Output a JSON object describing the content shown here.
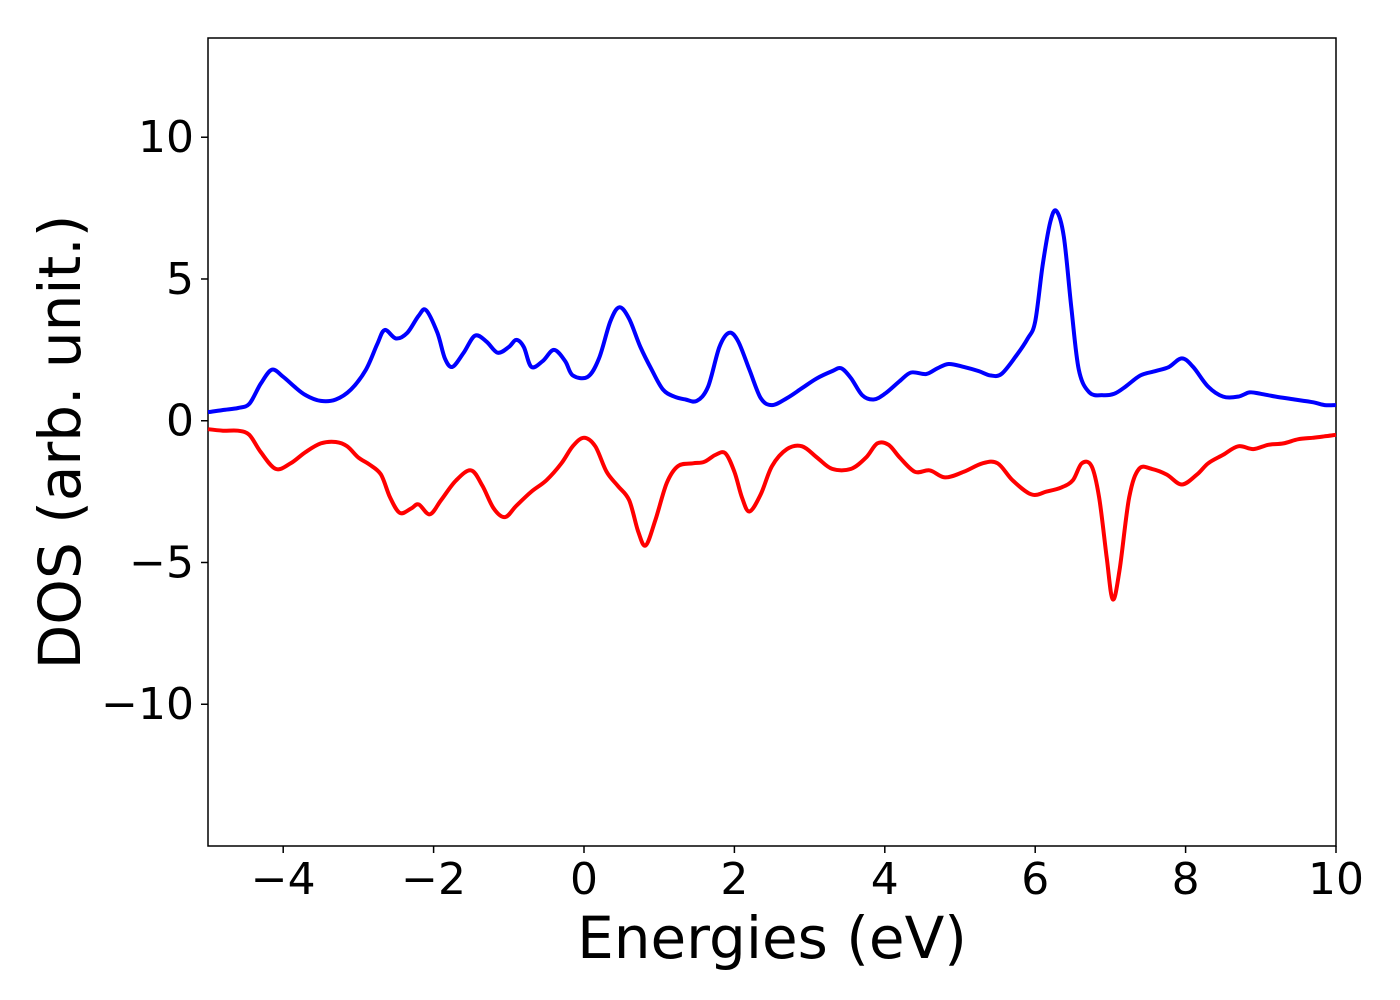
{
  "chart_data": {
    "type": "line",
    "title": "",
    "xlabel": "Energies (eV)",
    "ylabel": "DOS (arb. unit.)",
    "xlim": [
      -5,
      10
    ],
    "ylim": [
      -15,
      13.5
    ],
    "xticks": [
      -4,
      -2,
      0,
      2,
      4,
      6,
      8,
      10
    ],
    "xtick_labels": [
      "−4",
      "−2",
      "0",
      "2",
      "4",
      "6",
      "8",
      "10"
    ],
    "yticks": [
      -10,
      -5,
      0,
      5,
      10
    ],
    "ytick_labels": [
      "−10",
      "−5",
      "0",
      "5",
      "10"
    ],
    "grid": false,
    "series": [
      {
        "color": "#0000ff",
        "points": [
          [
            -5.0,
            0.3
          ],
          [
            -4.8,
            0.38
          ],
          [
            -4.6,
            0.45
          ],
          [
            -4.45,
            0.6
          ],
          [
            -4.3,
            1.3
          ],
          [
            -4.15,
            1.8
          ],
          [
            -4.0,
            1.55
          ],
          [
            -3.85,
            1.2
          ],
          [
            -3.7,
            0.9
          ],
          [
            -3.5,
            0.7
          ],
          [
            -3.3,
            0.75
          ],
          [
            -3.1,
            1.1
          ],
          [
            -2.9,
            1.8
          ],
          [
            -2.75,
            2.7
          ],
          [
            -2.65,
            3.2
          ],
          [
            -2.5,
            2.9
          ],
          [
            -2.35,
            3.1
          ],
          [
            -2.2,
            3.7
          ],
          [
            -2.1,
            3.9
          ],
          [
            -1.95,
            3.1
          ],
          [
            -1.85,
            2.2
          ],
          [
            -1.75,
            1.9
          ],
          [
            -1.6,
            2.4
          ],
          [
            -1.45,
            3.0
          ],
          [
            -1.3,
            2.8
          ],
          [
            -1.15,
            2.4
          ],
          [
            -1.0,
            2.6
          ],
          [
            -0.9,
            2.85
          ],
          [
            -0.8,
            2.6
          ],
          [
            -0.7,
            1.9
          ],
          [
            -0.55,
            2.1
          ],
          [
            -0.4,
            2.5
          ],
          [
            -0.25,
            2.1
          ],
          [
            -0.15,
            1.6
          ],
          [
            0.05,
            1.55
          ],
          [
            0.2,
            2.2
          ],
          [
            0.35,
            3.5
          ],
          [
            0.47,
            4.0
          ],
          [
            0.6,
            3.6
          ],
          [
            0.75,
            2.6
          ],
          [
            0.9,
            1.8
          ],
          [
            1.05,
            1.1
          ],
          [
            1.2,
            0.85
          ],
          [
            1.35,
            0.75
          ],
          [
            1.5,
            0.7
          ],
          [
            1.65,
            1.2
          ],
          [
            1.8,
            2.6
          ],
          [
            1.93,
            3.1
          ],
          [
            2.05,
            2.8
          ],
          [
            2.2,
            1.8
          ],
          [
            2.35,
            0.8
          ],
          [
            2.5,
            0.55
          ],
          [
            2.7,
            0.8
          ],
          [
            2.9,
            1.15
          ],
          [
            3.1,
            1.5
          ],
          [
            3.3,
            1.75
          ],
          [
            3.42,
            1.85
          ],
          [
            3.55,
            1.5
          ],
          [
            3.7,
            0.9
          ],
          [
            3.85,
            0.75
          ],
          [
            4.0,
            0.95
          ],
          [
            4.2,
            1.4
          ],
          [
            4.35,
            1.7
          ],
          [
            4.55,
            1.65
          ],
          [
            4.7,
            1.85
          ],
          [
            4.85,
            2.0
          ],
          [
            5.05,
            1.9
          ],
          [
            5.25,
            1.75
          ],
          [
            5.4,
            1.6
          ],
          [
            5.55,
            1.65
          ],
          [
            5.75,
            2.3
          ],
          [
            5.9,
            2.9
          ],
          [
            6.0,
            3.5
          ],
          [
            6.1,
            5.5
          ],
          [
            6.2,
            7.0
          ],
          [
            6.28,
            7.4
          ],
          [
            6.38,
            6.5
          ],
          [
            6.48,
            4.0
          ],
          [
            6.58,
            1.8
          ],
          [
            6.72,
            1.0
          ],
          [
            6.9,
            0.9
          ],
          [
            7.05,
            0.95
          ],
          [
            7.2,
            1.2
          ],
          [
            7.4,
            1.6
          ],
          [
            7.6,
            1.75
          ],
          [
            7.78,
            1.9
          ],
          [
            7.95,
            2.2
          ],
          [
            8.1,
            1.9
          ],
          [
            8.3,
            1.2
          ],
          [
            8.5,
            0.85
          ],
          [
            8.7,
            0.85
          ],
          [
            8.85,
            1.0
          ],
          [
            9.0,
            0.95
          ],
          [
            9.2,
            0.85
          ],
          [
            9.45,
            0.75
          ],
          [
            9.7,
            0.65
          ],
          [
            9.85,
            0.55
          ],
          [
            10.0,
            0.55
          ]
        ]
      },
      {
        "color": "#ff0000",
        "points": [
          [
            -5.0,
            -0.3
          ],
          [
            -4.8,
            -0.35
          ],
          [
            -4.6,
            -0.35
          ],
          [
            -4.45,
            -0.5
          ],
          [
            -4.3,
            -1.1
          ],
          [
            -4.1,
            -1.7
          ],
          [
            -3.9,
            -1.5
          ],
          [
            -3.7,
            -1.1
          ],
          [
            -3.5,
            -0.8
          ],
          [
            -3.3,
            -0.75
          ],
          [
            -3.15,
            -0.9
          ],
          [
            -3.0,
            -1.3
          ],
          [
            -2.85,
            -1.55
          ],
          [
            -2.7,
            -1.9
          ],
          [
            -2.58,
            -2.7
          ],
          [
            -2.45,
            -3.25
          ],
          [
            -2.3,
            -3.1
          ],
          [
            -2.2,
            -2.95
          ],
          [
            -2.05,
            -3.3
          ],
          [
            -1.9,
            -2.8
          ],
          [
            -1.7,
            -2.1
          ],
          [
            -1.5,
            -1.75
          ],
          [
            -1.35,
            -2.3
          ],
          [
            -1.2,
            -3.1
          ],
          [
            -1.05,
            -3.4
          ],
          [
            -0.9,
            -3.0
          ],
          [
            -0.7,
            -2.5
          ],
          [
            -0.5,
            -2.1
          ],
          [
            -0.3,
            -1.5
          ],
          [
            -0.15,
            -0.9
          ],
          [
            0.0,
            -0.6
          ],
          [
            0.15,
            -0.9
          ],
          [
            0.3,
            -1.8
          ],
          [
            0.45,
            -2.3
          ],
          [
            0.6,
            -2.8
          ],
          [
            0.72,
            -3.9
          ],
          [
            0.82,
            -4.4
          ],
          [
            0.95,
            -3.5
          ],
          [
            1.1,
            -2.2
          ],
          [
            1.25,
            -1.6
          ],
          [
            1.45,
            -1.5
          ],
          [
            1.6,
            -1.45
          ],
          [
            1.75,
            -1.2
          ],
          [
            1.88,
            -1.15
          ],
          [
            2.0,
            -1.8
          ],
          [
            2.1,
            -2.7
          ],
          [
            2.2,
            -3.2
          ],
          [
            2.35,
            -2.6
          ],
          [
            2.5,
            -1.6
          ],
          [
            2.7,
            -1.0
          ],
          [
            2.9,
            -0.9
          ],
          [
            3.1,
            -1.3
          ],
          [
            3.3,
            -1.7
          ],
          [
            3.55,
            -1.7
          ],
          [
            3.75,
            -1.3
          ],
          [
            3.9,
            -0.8
          ],
          [
            4.05,
            -0.85
          ],
          [
            4.2,
            -1.3
          ],
          [
            4.4,
            -1.8
          ],
          [
            4.6,
            -1.75
          ],
          [
            4.8,
            -2.0
          ],
          [
            5.05,
            -1.8
          ],
          [
            5.3,
            -1.5
          ],
          [
            5.5,
            -1.5
          ],
          [
            5.7,
            -2.1
          ],
          [
            5.95,
            -2.6
          ],
          [
            6.15,
            -2.5
          ],
          [
            6.35,
            -2.35
          ],
          [
            6.5,
            -2.1
          ],
          [
            6.62,
            -1.5
          ],
          [
            6.75,
            -1.6
          ],
          [
            6.85,
            -2.7
          ],
          [
            6.95,
            -4.8
          ],
          [
            7.03,
            -6.3
          ],
          [
            7.12,
            -5.3
          ],
          [
            7.25,
            -2.7
          ],
          [
            7.38,
            -1.7
          ],
          [
            7.55,
            -1.7
          ],
          [
            7.75,
            -1.9
          ],
          [
            7.95,
            -2.25
          ],
          [
            8.15,
            -1.9
          ],
          [
            8.3,
            -1.5
          ],
          [
            8.5,
            -1.2
          ],
          [
            8.7,
            -0.9
          ],
          [
            8.9,
            -1.0
          ],
          [
            9.1,
            -0.85
          ],
          [
            9.3,
            -0.8
          ],
          [
            9.5,
            -0.65
          ],
          [
            9.7,
            -0.6
          ],
          [
            9.85,
            -0.55
          ],
          [
            10.0,
            -0.5
          ]
        ]
      }
    ]
  }
}
